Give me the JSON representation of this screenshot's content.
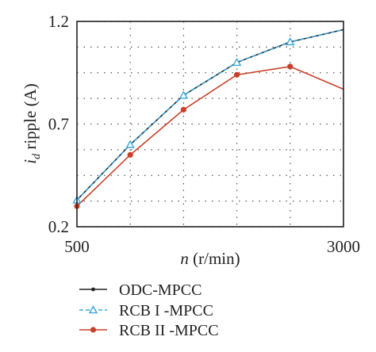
{
  "chart_data": {
    "type": "line",
    "x": [
      500,
      1000,
      1500,
      2000,
      2500,
      3000
    ],
    "xlim": [
      500,
      3000
    ],
    "ylim": [
      0.2,
      1.2
    ],
    "x_tick_labels": [
      "500",
      "3000"
    ],
    "x_tick_values": [
      500,
      3000
    ],
    "y_tick_labels": [
      "1.2",
      "0.7",
      "0.2"
    ],
    "y_tick_values": [
      1.2,
      0.7,
      0.2
    ],
    "x_grid": [
      500,
      1000,
      1500,
      2000,
      2500,
      3000
    ],
    "y_grid": [
      0.2,
      0.325,
      0.45,
      0.575,
      0.7,
      0.825,
      0.95,
      1.075,
      1.2
    ],
    "grid": true,
    "grid_style": "dotted",
    "xlabel_italic": "n",
    "xlabel_rest": " (r/min)",
    "ylabel_italic": "i",
    "ylabel_sub": "d",
    "ylabel_rest": " ripple (A)",
    "legend_position": "bottom",
    "series": [
      {
        "name": "ODC-MPCC",
        "color": "#222222",
        "marker": "dot",
        "line": "solid",
        "values": [
          0.33,
          0.6,
          0.84,
          1.0,
          1.1,
          1.16
        ]
      },
      {
        "name": "RCB I -MPCC",
        "color": "#3aa6dd",
        "marker": "triangle",
        "line": "dashed",
        "values": [
          0.33,
          0.6,
          0.84,
          1.0,
          1.1,
          1.16
        ]
      },
      {
        "name": "RCB II -MPCC",
        "color": "#c9402a",
        "marker": "dot",
        "line": "solid",
        "values": [
          0.3,
          0.55,
          0.77,
          0.94,
          0.98,
          0.87
        ]
      }
    ]
  }
}
